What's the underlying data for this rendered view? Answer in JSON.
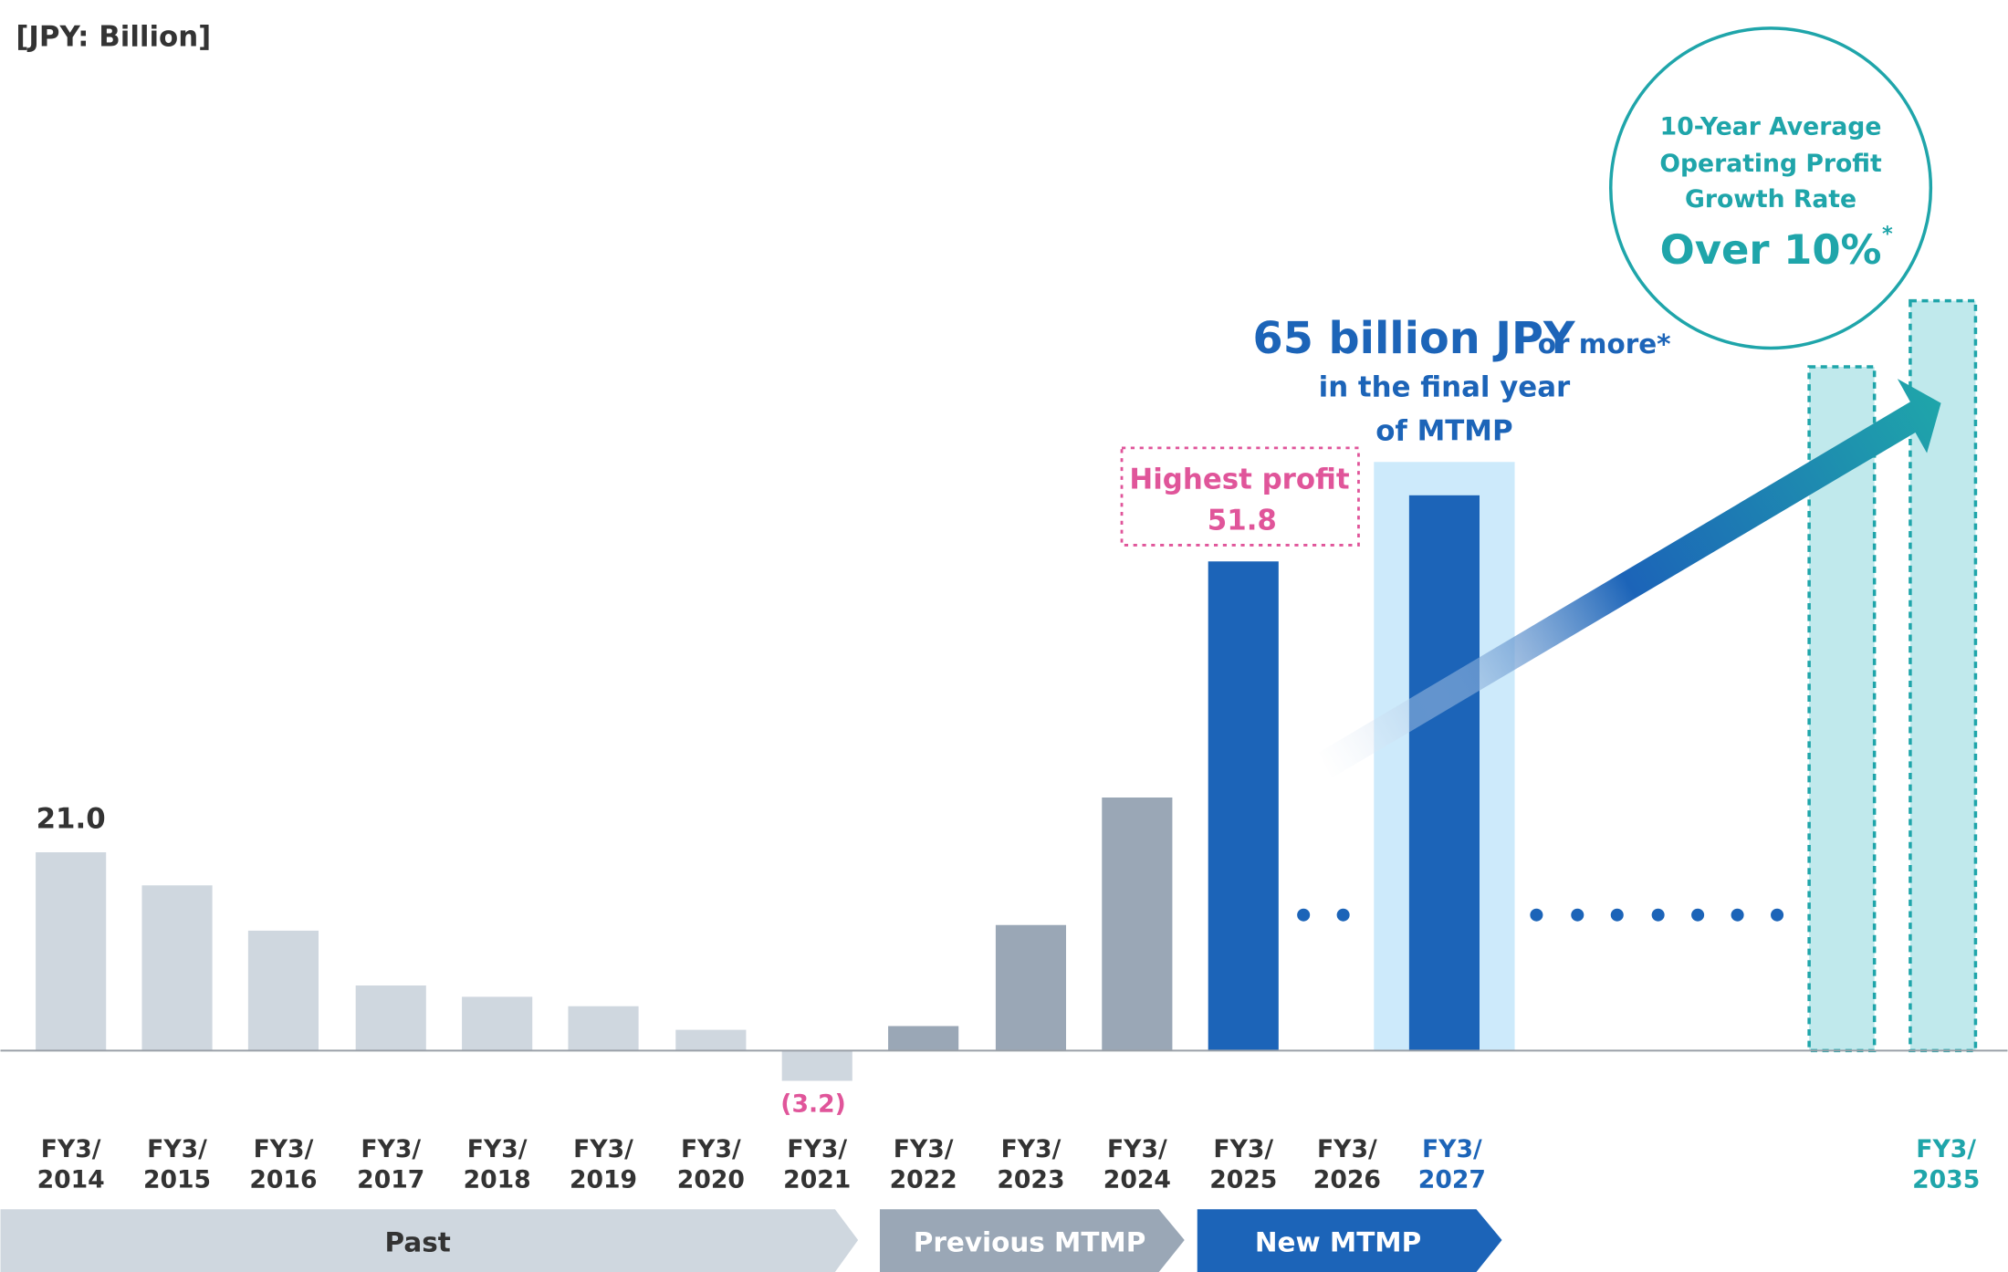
{
  "unit_label": "[JPY: Billion]",
  "chart_data": {
    "type": "bar",
    "title": "",
    "unit": "[JPY: Billion]",
    "categories": [
      {
        "line1": "FY3/",
        "line2": "2014"
      },
      {
        "line1": "FY3/",
        "line2": "2015"
      },
      {
        "line1": "FY3/",
        "line2": "2016"
      },
      {
        "line1": "FY3/",
        "line2": "2017"
      },
      {
        "line1": "FY3/",
        "line2": "2018"
      },
      {
        "line1": "FY3/",
        "line2": "2019"
      },
      {
        "line1": "FY3/",
        "line2": "2020"
      },
      {
        "line1": "FY3/",
        "line2": "2021"
      },
      {
        "line1": "FY3/",
        "line2": "2022"
      },
      {
        "line1": "FY3/",
        "line2": "2023"
      },
      {
        "line1": "FY3/",
        "line2": "2024"
      },
      {
        "line1": "FY3/",
        "line2": "2025"
      },
      {
        "line1": "FY3/",
        "line2": "2026"
      },
      {
        "line1": "FY3/",
        "line2": "2027"
      },
      {
        "line1": "FY3/",
        "line2": "2035"
      }
    ],
    "values": [
      21.0,
      17.5,
      12.7,
      6.9,
      5.7,
      4.7,
      2.2,
      -3.2,
      2.6,
      13.3,
      26.8,
      51.8,
      null,
      58.8,
      79.4
    ],
    "bar_styles": [
      "past",
      "past",
      "past",
      "past",
      "past",
      "past",
      "past",
      "past",
      "prev",
      "prev",
      "prev",
      "new",
      "none",
      "new",
      "target"
    ],
    "target_intermediate_value": 72.4,
    "data_labels": {
      "FY3/2014": "21.0",
      "FY3/2021": "(3.2)"
    },
    "colors": {
      "past": "#cfd7df",
      "prev": "#9aa7b6",
      "new": "#1c64b8",
      "band": "#cdeafb",
      "target_fill": "#c0e9ec",
      "target_stroke": "#1fa5aa",
      "highlight": "#e0559a",
      "axis": "#9aa0a8",
      "category_new": "#1c64b8",
      "category_target": "#1fa5aa"
    },
    "grid": false,
    "legend": "none"
  },
  "annotations": {
    "highest_profit_label": "Highest profit",
    "highest_profit_value": "51.8",
    "target_main": "65 billion JPY",
    "target_suffix": "or more*",
    "target_line2": "in the final year",
    "target_line3": "of MTMP",
    "circle_line1": "10-Year Average",
    "circle_line2": "Operating Profit",
    "circle_line3": "Growth Rate",
    "circle_value": "Over 10%",
    "circle_asterisk": "*"
  },
  "periods": [
    {
      "label": "Past",
      "color": "#cfd7df",
      "text_color": "#333333"
    },
    {
      "label": "Previous MTMP",
      "color": "#9aa7b6",
      "text_color": "#ffffff"
    },
    {
      "label": "New MTMP",
      "color": "#1c64b8",
      "text_color": "#ffffff"
    }
  ]
}
